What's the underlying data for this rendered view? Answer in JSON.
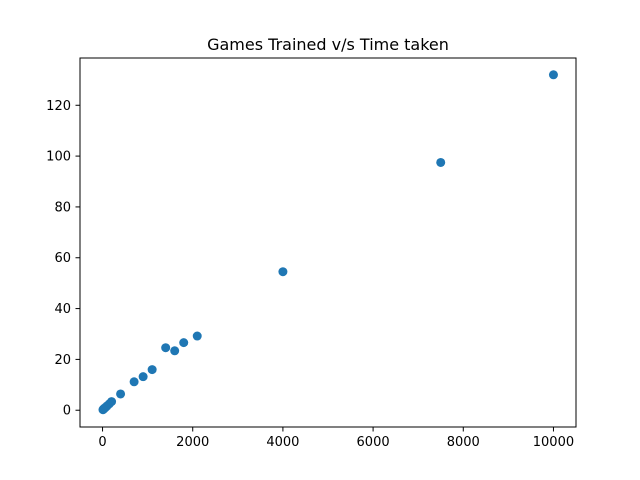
{
  "chart_data": {
    "type": "scatter",
    "title": "Games Trained v/s Time taken",
    "xlabel": "",
    "ylabel": "",
    "xlim": [
      -500,
      10500
    ],
    "ylim": [
      -6.6,
      138.6
    ],
    "x_ticks": [
      0,
      2000,
      4000,
      6000,
      8000,
      10000
    ],
    "y_ticks": [
      0,
      20,
      40,
      60,
      80,
      100,
      120
    ],
    "x_tick_labels": [
      "0",
      "2000",
      "4000",
      "6000",
      "8000",
      "10000"
    ],
    "y_tick_labels": [
      "0",
      "20",
      "40",
      "60",
      "80",
      "100",
      "120"
    ],
    "grid": false,
    "marker_color": "#1f77b4",
    "points": [
      {
        "x": 10,
        "y": 0.2
      },
      {
        "x": 20,
        "y": 0.4
      },
      {
        "x": 30,
        "y": 0.6
      },
      {
        "x": 50,
        "y": 0.9
      },
      {
        "x": 70,
        "y": 1.2
      },
      {
        "x": 100,
        "y": 1.7
      },
      {
        "x": 150,
        "y": 2.5
      },
      {
        "x": 200,
        "y": 3.4
      },
      {
        "x": 400,
        "y": 6.4
      },
      {
        "x": 700,
        "y": 11.2
      },
      {
        "x": 900,
        "y": 13.2
      },
      {
        "x": 1100,
        "y": 16.0
      },
      {
        "x": 1400,
        "y": 24.6
      },
      {
        "x": 1600,
        "y": 23.4
      },
      {
        "x": 1800,
        "y": 26.6
      },
      {
        "x": 2100,
        "y": 29.2
      },
      {
        "x": 4000,
        "y": 54.5
      },
      {
        "x": 7500,
        "y": 97.5
      },
      {
        "x": 10000,
        "y": 132.0
      }
    ]
  }
}
